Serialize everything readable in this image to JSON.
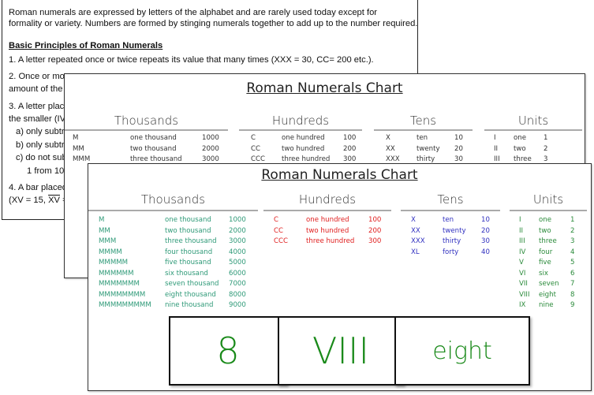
{
  "document": {
    "intro": [
      "Roman numerals are expressed by letters of the alphabet and are rarely used today except for",
      "formality or variety. Numbers are formed by stinging numerals together to add up to the number required."
    ],
    "heading": "Basic Principles of Roman Numerals",
    "lines": [
      "1. A letter repeated once or twice repeats its value that many times (XXX = 30, CC= 200 etc.).",
      "2. Once or mo",
      "amount of the",
      "3. A letter plac",
      "the smaller (IV",
      "a) only subtra",
      "b) only subtra",
      "c) do not sub",
      "1 from 10",
      "4. A bar placed"
    ],
    "last_pre": "(XV = 15, ",
    "last_over": "XV",
    "last_post": " ="
  },
  "chart": {
    "title": "Roman Numerals Chart",
    "sections": [
      {
        "name": "Thousands",
        "color": "#2f9a78",
        "rows": [
          [
            "M",
            "one thousand",
            "1000"
          ],
          [
            "MM",
            "two thousand",
            "2000"
          ],
          [
            "MMM",
            "three thousand",
            "3000"
          ],
          [
            "MMMM",
            "four thousand",
            "4000"
          ],
          [
            "MMMMM",
            "five thousand",
            "5000"
          ],
          [
            "MMMMMM",
            "six thousand",
            "6000"
          ],
          [
            "MMMMMMM",
            "seven thousand",
            "7000"
          ],
          [
            "MMMMMMMM",
            "eight thousand",
            "8000"
          ],
          [
            "MMMMMMMMM",
            "nine thousand",
            "9000"
          ]
        ]
      },
      {
        "name": "Hundreds",
        "color": "#e02020",
        "rows": [
          [
            "C",
            "one hundred",
            "100"
          ],
          [
            "CC",
            "two hundred",
            "200"
          ],
          [
            "CCC",
            "three hundred",
            "300"
          ]
        ]
      },
      {
        "name": "Tens",
        "color": "#3030c0",
        "rows": [
          [
            "X",
            "ten",
            "10"
          ],
          [
            "XX",
            "twenty",
            "20"
          ],
          [
            "XXX",
            "thirty",
            "30"
          ],
          [
            "XL",
            "forty",
            "40"
          ]
        ]
      },
      {
        "name": "Units",
        "color": "#2a8a3a",
        "rows": [
          [
            "I",
            "one",
            "1"
          ],
          [
            "II",
            "two",
            "2"
          ],
          [
            "III",
            "three",
            "3"
          ],
          [
            "IV",
            "four",
            "4"
          ],
          [
            "V",
            "five",
            "5"
          ],
          [
            "VI",
            "six",
            "6"
          ],
          [
            "VII",
            "seven",
            "7"
          ],
          [
            "VIII",
            "eight",
            "8"
          ],
          [
            "IX",
            "nine",
            "9"
          ]
        ]
      }
    ]
  },
  "cards": {
    "digit": "8",
    "roman": "VIII",
    "word": "eight",
    "color": "#1a8a1a"
  }
}
